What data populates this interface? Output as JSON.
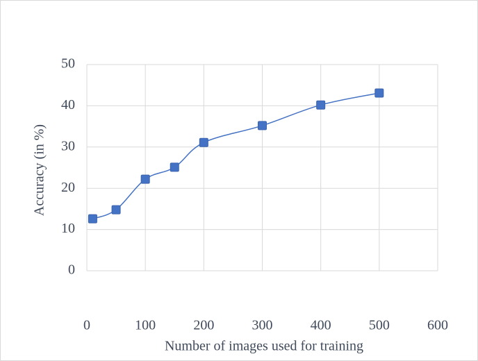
{
  "chart_data": {
    "type": "line",
    "x_label": "Number of images used for training",
    "y_label": "Accuracy (in %)",
    "x": [
      10,
      50,
      100,
      150,
      200,
      300,
      400,
      500
    ],
    "series": [
      {
        "name": "Accuracy",
        "color": "#4472c4",
        "values": [
          12.6,
          14.8,
          22.2,
          25.1,
          31.1,
          35.2,
          40.2,
          43.1
        ]
      }
    ],
    "xlim": [
      0,
      600
    ],
    "xticks": [
      0,
      100,
      200,
      300,
      400,
      500,
      600
    ],
    "ylim": [
      0,
      50
    ],
    "yticks": [
      0,
      10,
      20,
      30,
      40,
      50
    ],
    "grid": true
  }
}
